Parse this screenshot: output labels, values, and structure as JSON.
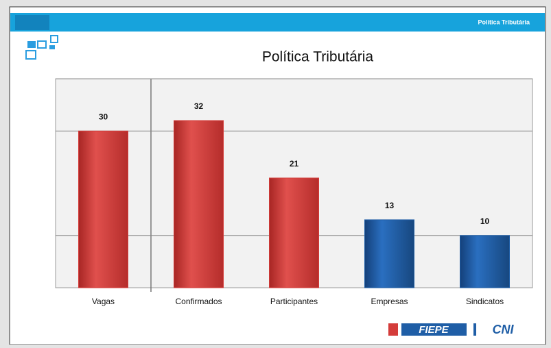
{
  "header": {
    "label": "Política Tributária"
  },
  "chart_data": {
    "type": "bar",
    "title": "Política Tributária",
    "categories": [
      "Vagas",
      "Confirmados",
      "Participantes",
      "Empresas",
      "Sindicatos"
    ],
    "values": [
      30,
      32,
      21,
      13,
      10
    ],
    "colors": [
      "#d43c3a",
      "#d43c3a",
      "#d43c3a",
      "#1f5ea6",
      "#1f5ea6"
    ],
    "ylim": [
      0,
      40
    ],
    "yticks": [
      10,
      30,
      40
    ],
    "grid": true
  },
  "footer": {
    "logos": [
      "FIEPE",
      "CNI"
    ]
  }
}
